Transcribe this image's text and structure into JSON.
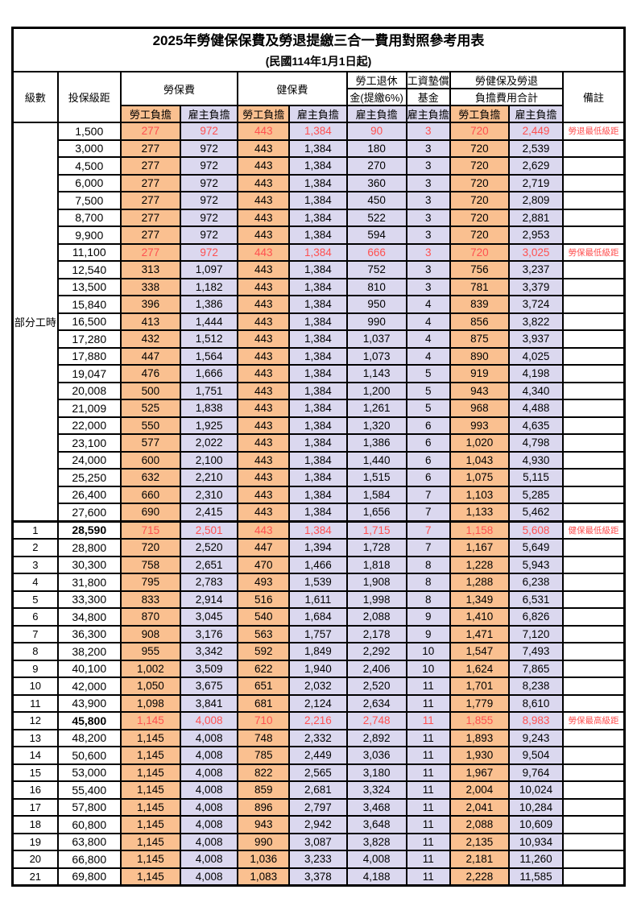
{
  "title": "2025年勞健保保費及勞退提繳三合一費用對照參考用表",
  "subtitle": "(民國114年1月1日起)",
  "columns": {
    "level": "級數",
    "salary": "投保級距",
    "labor": "勞保費",
    "health": "健保費",
    "pension_line1": "勞工退休",
    "pension_line2": "金(提繳6%)",
    "fund_line1": "工資墊償",
    "fund_line2": "基金",
    "total_line1": "勞健保及勞退",
    "total_line2": "負擔費用合計",
    "note": "備註",
    "employee": "勞工負擔",
    "employer": "雇主負擔"
  },
  "group_label": "部分工時",
  "colors": {
    "employee_bg": "#FAC090",
    "employer_bg": "#DBD8EF",
    "highlight_red": "#FF5050",
    "border": "#000000"
  },
  "rows": [
    {
      "level": "",
      "salary": "1,500",
      "labor_emp": "277",
      "labor_er": "972",
      "health_emp": "443",
      "health_er": "1,384",
      "pension_er": "90",
      "fund_er": "3",
      "total_emp": "720",
      "total_er": "2,449",
      "note": "勞退最低級距",
      "highlight": true,
      "bold": false,
      "thick_top": false
    },
    {
      "level": "",
      "salary": "3,000",
      "labor_emp": "277",
      "labor_er": "972",
      "health_emp": "443",
      "health_er": "1,384",
      "pension_er": "180",
      "fund_er": "3",
      "total_emp": "720",
      "total_er": "2,539",
      "note": "",
      "highlight": false,
      "bold": false,
      "thick_top": false
    },
    {
      "level": "",
      "salary": "4,500",
      "labor_emp": "277",
      "labor_er": "972",
      "health_emp": "443",
      "health_er": "1,384",
      "pension_er": "270",
      "fund_er": "3",
      "total_emp": "720",
      "total_er": "2,629",
      "note": "",
      "highlight": false,
      "bold": false,
      "thick_top": false
    },
    {
      "level": "",
      "salary": "6,000",
      "labor_emp": "277",
      "labor_er": "972",
      "health_emp": "443",
      "health_er": "1,384",
      "pension_er": "360",
      "fund_er": "3",
      "total_emp": "720",
      "total_er": "2,719",
      "note": "",
      "highlight": false,
      "bold": false,
      "thick_top": false
    },
    {
      "level": "",
      "salary": "7,500",
      "labor_emp": "277",
      "labor_er": "972",
      "health_emp": "443",
      "health_er": "1,384",
      "pension_er": "450",
      "fund_er": "3",
      "total_emp": "720",
      "total_er": "2,809",
      "note": "",
      "highlight": false,
      "bold": false,
      "thick_top": false
    },
    {
      "level": "",
      "salary": "8,700",
      "labor_emp": "277",
      "labor_er": "972",
      "health_emp": "443",
      "health_er": "1,384",
      "pension_er": "522",
      "fund_er": "3",
      "total_emp": "720",
      "total_er": "2,881",
      "note": "",
      "highlight": false,
      "bold": false,
      "thick_top": false
    },
    {
      "level": "",
      "salary": "9,900",
      "labor_emp": "277",
      "labor_er": "972",
      "health_emp": "443",
      "health_er": "1,384",
      "pension_er": "594",
      "fund_er": "3",
      "total_emp": "720",
      "total_er": "2,953",
      "note": "",
      "highlight": false,
      "bold": false,
      "thick_top": false
    },
    {
      "level": "",
      "salary": "11,100",
      "labor_emp": "277",
      "labor_er": "972",
      "health_emp": "443",
      "health_er": "1,384",
      "pension_er": "666",
      "fund_er": "3",
      "total_emp": "720",
      "total_er": "3,025",
      "note": "勞保最低級距",
      "highlight": true,
      "bold": false,
      "thick_top": false
    },
    {
      "level": "",
      "salary": "12,540",
      "labor_emp": "313",
      "labor_er": "1,097",
      "health_emp": "443",
      "health_er": "1,384",
      "pension_er": "752",
      "fund_er": "3",
      "total_emp": "756",
      "total_er": "3,237",
      "note": "",
      "highlight": false,
      "bold": false,
      "thick_top": false
    },
    {
      "level": "",
      "salary": "13,500",
      "labor_emp": "338",
      "labor_er": "1,182",
      "health_emp": "443",
      "health_er": "1,384",
      "pension_er": "810",
      "fund_er": "3",
      "total_emp": "781",
      "total_er": "3,379",
      "note": "",
      "highlight": false,
      "bold": false,
      "thick_top": false
    },
    {
      "level": "",
      "salary": "15,840",
      "labor_emp": "396",
      "labor_er": "1,386",
      "health_emp": "443",
      "health_er": "1,384",
      "pension_er": "950",
      "fund_er": "4",
      "total_emp": "839",
      "total_er": "3,724",
      "note": "",
      "highlight": false,
      "bold": false,
      "thick_top": false
    },
    {
      "level": "",
      "salary": "16,500",
      "labor_emp": "413",
      "labor_er": "1,444",
      "health_emp": "443",
      "health_er": "1,384",
      "pension_er": "990",
      "fund_er": "4",
      "total_emp": "856",
      "total_er": "3,822",
      "note": "",
      "highlight": false,
      "bold": false,
      "thick_top": false
    },
    {
      "level": "",
      "salary": "17,280",
      "labor_emp": "432",
      "labor_er": "1,512",
      "health_emp": "443",
      "health_er": "1,384",
      "pension_er": "1,037",
      "fund_er": "4",
      "total_emp": "875",
      "total_er": "3,937",
      "note": "",
      "highlight": false,
      "bold": false,
      "thick_top": false
    },
    {
      "level": "",
      "salary": "17,880",
      "labor_emp": "447",
      "labor_er": "1,564",
      "health_emp": "443",
      "health_er": "1,384",
      "pension_er": "1,073",
      "fund_er": "4",
      "total_emp": "890",
      "total_er": "4,025",
      "note": "",
      "highlight": false,
      "bold": false,
      "thick_top": false
    },
    {
      "level": "",
      "salary": "19,047",
      "labor_emp": "476",
      "labor_er": "1,666",
      "health_emp": "443",
      "health_er": "1,384",
      "pension_er": "1,143",
      "fund_er": "5",
      "total_emp": "919",
      "total_er": "4,198",
      "note": "",
      "highlight": false,
      "bold": false,
      "thick_top": false
    },
    {
      "level": "",
      "salary": "20,008",
      "labor_emp": "500",
      "labor_er": "1,751",
      "health_emp": "443",
      "health_er": "1,384",
      "pension_er": "1,200",
      "fund_er": "5",
      "total_emp": "943",
      "total_er": "4,340",
      "note": "",
      "highlight": false,
      "bold": false,
      "thick_top": false
    },
    {
      "level": "",
      "salary": "21,009",
      "labor_emp": "525",
      "labor_er": "1,838",
      "health_emp": "443",
      "health_er": "1,384",
      "pension_er": "1,261",
      "fund_er": "5",
      "total_emp": "968",
      "total_er": "4,488",
      "note": "",
      "highlight": false,
      "bold": false,
      "thick_top": false
    },
    {
      "level": "",
      "salary": "22,000",
      "labor_emp": "550",
      "labor_er": "1,925",
      "health_emp": "443",
      "health_er": "1,384",
      "pension_er": "1,320",
      "fund_er": "6",
      "total_emp": "993",
      "total_er": "4,635",
      "note": "",
      "highlight": false,
      "bold": false,
      "thick_top": false
    },
    {
      "level": "",
      "salary": "23,100",
      "labor_emp": "577",
      "labor_er": "2,022",
      "health_emp": "443",
      "health_er": "1,384",
      "pension_er": "1,386",
      "fund_er": "6",
      "total_emp": "1,020",
      "total_er": "4,798",
      "note": "",
      "highlight": false,
      "bold": false,
      "thick_top": false
    },
    {
      "level": "",
      "salary": "24,000",
      "labor_emp": "600",
      "labor_er": "2,100",
      "health_emp": "443",
      "health_er": "1,384",
      "pension_er": "1,440",
      "fund_er": "6",
      "total_emp": "1,043",
      "total_er": "4,930",
      "note": "",
      "highlight": false,
      "bold": false,
      "thick_top": false
    },
    {
      "level": "",
      "salary": "25,250",
      "labor_emp": "632",
      "labor_er": "2,210",
      "health_emp": "443",
      "health_er": "1,384",
      "pension_er": "1,515",
      "fund_er": "6",
      "total_emp": "1,075",
      "total_er": "5,115",
      "note": "",
      "highlight": false,
      "bold": false,
      "thick_top": false
    },
    {
      "level": "",
      "salary": "26,400",
      "labor_emp": "660",
      "labor_er": "2,310",
      "health_emp": "443",
      "health_er": "1,384",
      "pension_er": "1,584",
      "fund_er": "7",
      "total_emp": "1,103",
      "total_er": "5,285",
      "note": "",
      "highlight": false,
      "bold": false,
      "thick_top": false
    },
    {
      "level": "",
      "salary": "27,600",
      "labor_emp": "690",
      "labor_er": "2,415",
      "health_emp": "443",
      "health_er": "1,384",
      "pension_er": "1,656",
      "fund_er": "7",
      "total_emp": "1,133",
      "total_er": "5,462",
      "note": "",
      "highlight": false,
      "bold": false,
      "thick_top": false
    },
    {
      "level": "1",
      "salary": "28,590",
      "labor_emp": "715",
      "labor_er": "2,501",
      "health_emp": "443",
      "health_er": "1,384",
      "pension_er": "1,715",
      "fund_er": "7",
      "total_emp": "1,158",
      "total_er": "5,608",
      "note": "健保最低級距",
      "highlight": true,
      "bold": true,
      "thick_top": true
    },
    {
      "level": "2",
      "salary": "28,800",
      "labor_emp": "720",
      "labor_er": "2,520",
      "health_emp": "447",
      "health_er": "1,394",
      "pension_er": "1,728",
      "fund_er": "7",
      "total_emp": "1,167",
      "total_er": "5,649",
      "note": "",
      "highlight": false,
      "bold": false,
      "thick_top": false
    },
    {
      "level": "3",
      "salary": "30,300",
      "labor_emp": "758",
      "labor_er": "2,651",
      "health_emp": "470",
      "health_er": "1,466",
      "pension_er": "1,818",
      "fund_er": "8",
      "total_emp": "1,228",
      "total_er": "5,943",
      "note": "",
      "highlight": false,
      "bold": false,
      "thick_top": false
    },
    {
      "level": "4",
      "salary": "31,800",
      "labor_emp": "795",
      "labor_er": "2,783",
      "health_emp": "493",
      "health_er": "1,539",
      "pension_er": "1,908",
      "fund_er": "8",
      "total_emp": "1,288",
      "total_er": "6,238",
      "note": "",
      "highlight": false,
      "bold": false,
      "thick_top": false
    },
    {
      "level": "5",
      "salary": "33,300",
      "labor_emp": "833",
      "labor_er": "2,914",
      "health_emp": "516",
      "health_er": "1,611",
      "pension_er": "1,998",
      "fund_er": "8",
      "total_emp": "1,349",
      "total_er": "6,531",
      "note": "",
      "highlight": false,
      "bold": false,
      "thick_top": false
    },
    {
      "level": "6",
      "salary": "34,800",
      "labor_emp": "870",
      "labor_er": "3,045",
      "health_emp": "540",
      "health_er": "1,684",
      "pension_er": "2,088",
      "fund_er": "9",
      "total_emp": "1,410",
      "total_er": "6,826",
      "note": "",
      "highlight": false,
      "bold": false,
      "thick_top": false
    },
    {
      "level": "7",
      "salary": "36,300",
      "labor_emp": "908",
      "labor_er": "3,176",
      "health_emp": "563",
      "health_er": "1,757",
      "pension_er": "2,178",
      "fund_er": "9",
      "total_emp": "1,471",
      "total_er": "7,120",
      "note": "",
      "highlight": false,
      "bold": false,
      "thick_top": false
    },
    {
      "level": "8",
      "salary": "38,200",
      "labor_emp": "955",
      "labor_er": "3,342",
      "health_emp": "592",
      "health_er": "1,849",
      "pension_er": "2,292",
      "fund_er": "10",
      "total_emp": "1,547",
      "total_er": "7,493",
      "note": "",
      "highlight": false,
      "bold": false,
      "thick_top": false
    },
    {
      "level": "9",
      "salary": "40,100",
      "labor_emp": "1,002",
      "labor_er": "3,509",
      "health_emp": "622",
      "health_er": "1,940",
      "pension_er": "2,406",
      "fund_er": "10",
      "total_emp": "1,624",
      "total_er": "7,865",
      "note": "",
      "highlight": false,
      "bold": false,
      "thick_top": false
    },
    {
      "level": "10",
      "salary": "42,000",
      "labor_emp": "1,050",
      "labor_er": "3,675",
      "health_emp": "651",
      "health_er": "2,032",
      "pension_er": "2,520",
      "fund_er": "11",
      "total_emp": "1,701",
      "total_er": "8,238",
      "note": "",
      "highlight": false,
      "bold": false,
      "thick_top": false
    },
    {
      "level": "11",
      "salary": "43,900",
      "labor_emp": "1,098",
      "labor_er": "3,841",
      "health_emp": "681",
      "health_er": "2,124",
      "pension_er": "2,634",
      "fund_er": "11",
      "total_emp": "1,779",
      "total_er": "8,610",
      "note": "",
      "highlight": false,
      "bold": false,
      "thick_top": false
    },
    {
      "level": "12",
      "salary": "45,800",
      "labor_emp": "1,145",
      "labor_er": "4,008",
      "health_emp": "710",
      "health_er": "2,216",
      "pension_er": "2,748",
      "fund_er": "11",
      "total_emp": "1,855",
      "total_er": "8,983",
      "note": "勞保最高級距",
      "highlight": true,
      "bold": true,
      "thick_top": false
    },
    {
      "level": "13",
      "salary": "48,200",
      "labor_emp": "1,145",
      "labor_er": "4,008",
      "health_emp": "748",
      "health_er": "2,332",
      "pension_er": "2,892",
      "fund_er": "11",
      "total_emp": "1,893",
      "total_er": "9,243",
      "note": "",
      "highlight": false,
      "bold": false,
      "thick_top": false
    },
    {
      "level": "14",
      "salary": "50,600",
      "labor_emp": "1,145",
      "labor_er": "4,008",
      "health_emp": "785",
      "health_er": "2,449",
      "pension_er": "3,036",
      "fund_er": "11",
      "total_emp": "1,930",
      "total_er": "9,504",
      "note": "",
      "highlight": false,
      "bold": false,
      "thick_top": false
    },
    {
      "level": "15",
      "salary": "53,000",
      "labor_emp": "1,145",
      "labor_er": "4,008",
      "health_emp": "822",
      "health_er": "2,565",
      "pension_er": "3,180",
      "fund_er": "11",
      "total_emp": "1,967",
      "total_er": "9,764",
      "note": "",
      "highlight": false,
      "bold": false,
      "thick_top": false
    },
    {
      "level": "16",
      "salary": "55,400",
      "labor_emp": "1,145",
      "labor_er": "4,008",
      "health_emp": "859",
      "health_er": "2,681",
      "pension_er": "3,324",
      "fund_er": "11",
      "total_emp": "2,004",
      "total_er": "10,024",
      "note": "",
      "highlight": false,
      "bold": false,
      "thick_top": false
    },
    {
      "level": "17",
      "salary": "57,800",
      "labor_emp": "1,145",
      "labor_er": "4,008",
      "health_emp": "896",
      "health_er": "2,797",
      "pension_er": "3,468",
      "fund_er": "11",
      "total_emp": "2,041",
      "total_er": "10,284",
      "note": "",
      "highlight": false,
      "bold": false,
      "thick_top": false
    },
    {
      "level": "18",
      "salary": "60,800",
      "labor_emp": "1,145",
      "labor_er": "4,008",
      "health_emp": "943",
      "health_er": "2,942",
      "pension_er": "3,648",
      "fund_er": "11",
      "total_emp": "2,088",
      "total_er": "10,609",
      "note": "",
      "highlight": false,
      "bold": false,
      "thick_top": false
    },
    {
      "level": "19",
      "salary": "63,800",
      "labor_emp": "1,145",
      "labor_er": "4,008",
      "health_emp": "990",
      "health_er": "3,087",
      "pension_er": "3,828",
      "fund_er": "11",
      "total_emp": "2,135",
      "total_er": "10,934",
      "note": "",
      "highlight": false,
      "bold": false,
      "thick_top": false
    },
    {
      "level": "20",
      "salary": "66,800",
      "labor_emp": "1,145",
      "labor_er": "4,008",
      "health_emp": "1,036",
      "health_er": "3,233",
      "pension_er": "4,008",
      "fund_er": "11",
      "total_emp": "2,181",
      "total_er": "11,260",
      "note": "",
      "highlight": false,
      "bold": false,
      "thick_top": false
    },
    {
      "level": "21",
      "salary": "69,800",
      "labor_emp": "1,145",
      "labor_er": "4,008",
      "health_emp": "1,083",
      "health_er": "3,378",
      "pension_er": "4,188",
      "fund_er": "11",
      "total_emp": "2,228",
      "total_er": "11,585",
      "note": "",
      "highlight": false,
      "bold": false,
      "thick_top": false
    }
  ]
}
